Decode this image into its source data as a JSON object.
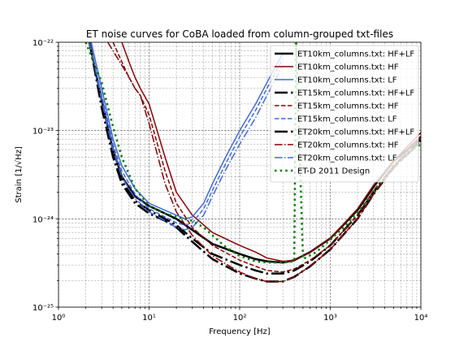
{
  "chart_data": {
    "type": "line",
    "title": "ET noise curves for CoBA loaded from column-grouped txt-files",
    "xlabel": "Frequency [Hz]",
    "ylabel": "Strain [1/√Hz]",
    "xscale": "log",
    "yscale": "log",
    "xlim": [
      1,
      10000
    ],
    "ylim": [
      1e-25,
      1e-22
    ],
    "x_tick_labels": [
      "10⁰",
      "10¹",
      "10²",
      "10³",
      "10⁴"
    ],
    "y_tick_labels": [
      "10⁻²⁵",
      "10⁻²⁴",
      "10⁻²³",
      "10⁻²²"
    ],
    "grid": "major and minor",
    "legend_position": "top-right",
    "series": [
      {
        "name": "ET10km_columns.txt: HF+LF",
        "color": "#000000",
        "dash": "solid",
        "width": 2.5,
        "x": [
          2.2,
          3,
          4,
          5,
          7,
          10,
          15,
          20,
          30,
          50,
          100,
          150,
          200,
          300,
          400,
          600,
          1000,
          2000,
          3000,
          5000,
          7000,
          10000
        ],
        "y": [
          1e-22,
          2.2e-23,
          6e-24,
          3e-24,
          1.8e-24,
          1.4e-24,
          1.15e-24,
          1e-24,
          7.5e-25,
          5.2e-25,
          4e-25,
          3.5e-25,
          3.3e-25,
          3.2e-25,
          3.4e-25,
          4.2e-25,
          6e-25,
          1.25e-24,
          2.3e-24,
          4.5e-24,
          6e-24,
          8.5e-24
        ]
      },
      {
        "name": "ET10km_columns.txt: HF",
        "color": "#8b0000",
        "dash": "solid",
        "width": 1.5,
        "x": [
          5,
          6,
          7,
          8,
          10,
          15,
          20,
          30,
          50,
          100,
          150,
          200,
          300,
          400,
          600,
          1000,
          2000,
          3000,
          5000,
          7000,
          10000
        ],
        "y": [
          1e-22,
          6e-23,
          4e-23,
          3e-23,
          2e-23,
          5e-24,
          2e-24,
          1.1e-24,
          7e-25,
          5e-25,
          4.2e-25,
          3.6e-25,
          3.3e-25,
          3.4e-25,
          4.2e-25,
          6e-25,
          1.3e-24,
          2.4e-24,
          4.5e-24,
          6.5e-24,
          9.5e-24
        ]
      },
      {
        "name": "ET10km_columns.txt: LF",
        "color": "#4169e1",
        "dash": "solid",
        "width": 1.5,
        "x": [
          2.3,
          3,
          4,
          5,
          7,
          10,
          15,
          20,
          25,
          30,
          40,
          50,
          70,
          100,
          150,
          200,
          300
        ],
        "y": [
          1e-22,
          3e-23,
          8e-24,
          4e-24,
          2.2e-24,
          1.5e-24,
          1.25e-24,
          1.1e-24,
          1e-24,
          1.05e-24,
          1.5e-24,
          2.5e-24,
          5e-24,
          1e-23,
          2e-23,
          3.5e-23,
          7.5e-23
        ]
      },
      {
        "name": "ET15km_columns.txt: HF+LF",
        "color": "#000000",
        "dash": "dashdot",
        "width": 2.5,
        "x": [
          2.2,
          3,
          4,
          5,
          7,
          10,
          15,
          20,
          30,
          50,
          100,
          150,
          200,
          300,
          400,
          600,
          1000,
          2000,
          3000,
          5000,
          7000,
          10000
        ],
        "y": [
          1e-22,
          2e-23,
          5.5e-24,
          2.7e-24,
          1.6e-24,
          1.25e-24,
          1e-24,
          8.5e-25,
          6e-25,
          4e-25,
          3e-25,
          2.6e-25,
          2.4e-25,
          2.4e-25,
          2.6e-25,
          3.3e-25,
          5e-25,
          1.1e-24,
          2e-24,
          4e-24,
          5.5e-24,
          8e-24
        ]
      },
      {
        "name": "ET15km_columns.txt: HF",
        "color": "#8b0000",
        "dash": "dashed",
        "width": 1.5,
        "x": [
          4,
          5,
          6,
          7,
          8,
          10,
          15,
          20,
          30,
          50,
          100,
          150,
          200,
          300,
          400,
          600,
          1000,
          2000,
          3000,
          5000,
          7000,
          10000
        ],
        "y": [
          1e-22,
          6e-23,
          4e-23,
          3e-23,
          2.5e-23,
          1.5e-23,
          3.5e-24,
          1.5e-24,
          8e-25,
          5e-25,
          3.4e-25,
          2.9e-25,
          2.6e-25,
          2.5e-25,
          2.7e-25,
          3.4e-25,
          5e-25,
          1.1e-24,
          2.1e-24,
          4e-24,
          5.8e-24,
          8.5e-24
        ]
      },
      {
        "name": "ET15km_columns.txt: LF",
        "color": "#4169e1",
        "dash": "dashed",
        "width": 1.5,
        "x": [
          2.2,
          3,
          4,
          5,
          7,
          10,
          15,
          20,
          25,
          30,
          40,
          50,
          70,
          100,
          150,
          200,
          300
        ],
        "y": [
          1e-22,
          2.5e-23,
          7e-24,
          3.5e-24,
          1.9e-24,
          1.3e-24,
          1.05e-24,
          9e-25,
          8.5e-25,
          9e-25,
          1.3e-24,
          2.1e-24,
          4.2e-24,
          8.5e-24,
          1.7e-23,
          3e-23,
          6.5e-23
        ]
      },
      {
        "name": "ET20km_columns.txt: HF+LF",
        "color": "#000000",
        "dash": "dashdot",
        "width": 2.5,
        "x": [
          2.2,
          3,
          4,
          5,
          7,
          10,
          15,
          20,
          30,
          50,
          100,
          150,
          200,
          300,
          400,
          600,
          1000,
          2000,
          3000,
          5000,
          7000,
          10000
        ],
        "y": [
          1e-22,
          1.8e-23,
          5e-24,
          2.5e-24,
          1.5e-24,
          1.15e-24,
          9.5e-25,
          8e-25,
          5.5e-25,
          3.5e-25,
          2.4e-25,
          2.1e-25,
          1.95e-25,
          1.95e-25,
          2.2e-25,
          2.9e-25,
          4.5e-25,
          1e-24,
          1.9e-24,
          3.8e-24,
          5.3e-24,
          7.5e-24
        ]
      },
      {
        "name": "ET20km_columns.txt: HF",
        "color": "#8b0000",
        "dash": "dashdot",
        "width": 1.5,
        "x": [
          3.5,
          4,
          5,
          6,
          7,
          8,
          10,
          15,
          20,
          30,
          50,
          100,
          150,
          200,
          300,
          400,
          600,
          1000,
          2000,
          3000,
          5000,
          7000,
          10000
        ],
        "y": [
          1e-22,
          8e-23,
          5.5e-23,
          4e-23,
          3e-23,
          2.5e-23,
          1.2e-23,
          2.5e-24,
          1.2e-24,
          6.5e-25,
          3.8e-25,
          2.5e-25,
          2.1e-25,
          1.95e-25,
          1.95e-25,
          2.2e-25,
          2.9e-25,
          4.5e-25,
          1e-24,
          1.9e-24,
          3.8e-24,
          5.3e-24,
          7.5e-24
        ]
      },
      {
        "name": "ET20km_columns.txt: LF",
        "color": "#4169e1",
        "dash": "dashdot",
        "width": 1.5,
        "x": [
          2.2,
          3,
          4,
          5,
          7,
          10,
          15,
          20,
          25,
          30,
          40,
          50,
          70,
          100,
          150,
          200,
          300
        ],
        "y": [
          1e-22,
          2.2e-23,
          6e-24,
          3e-24,
          1.7e-24,
          1.2e-24,
          9.5e-25,
          8e-25,
          7.5e-25,
          8e-25,
          1.1e-24,
          1.8e-24,
          3.6e-24,
          7e-24,
          1.4e-23,
          2.5e-23,
          5.5e-23
        ]
      },
      {
        "name": "ET-D 2011 Design",
        "color": "#008000",
        "dash": "dotted",
        "width": 2.5,
        "x": [
          2,
          3,
          4,
          5,
          7,
          10,
          15,
          20,
          30,
          40,
          50,
          70,
          100,
          150,
          200,
          300,
          400,
          420,
          500,
          700,
          1000,
          1500,
          2000,
          3000,
          5000,
          7000,
          10000
        ],
        "y": [
          1e-22,
          3.5e-23,
          1.1e-23,
          5e-24,
          2.2e-24,
          1.4e-24,
          1.15e-24,
          1.05e-24,
          9.5e-25,
          8e-25,
          6.5e-25,
          4.8e-25,
          3.8e-25,
          3.3e-25,
          3.2e-25,
          3.2e-25,
          3.3e-25,
          1e-22,
          3.5e-25,
          4.2e-25,
          5.8e-25,
          8.5e-25,
          1.2e-24,
          2e-24,
          4e-24,
          5.5e-24,
          7e-24
        ]
      }
    ]
  }
}
